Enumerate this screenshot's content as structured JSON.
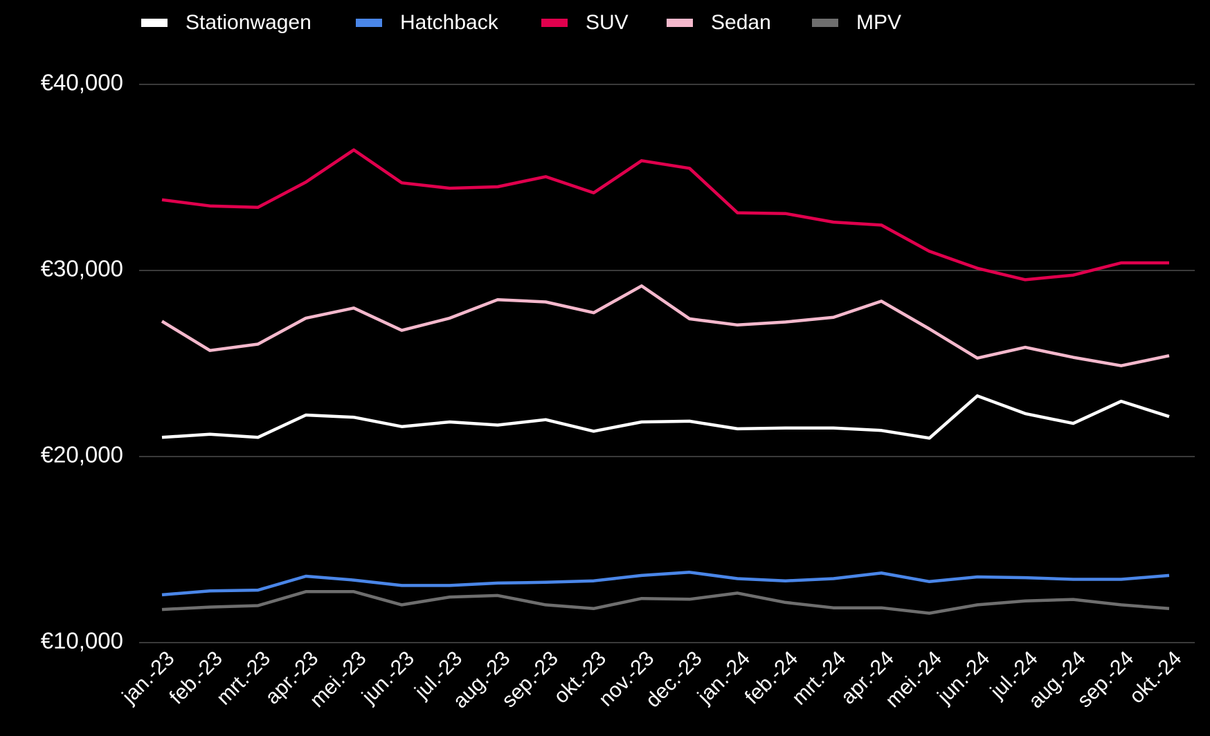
{
  "chart_data": {
    "type": "line",
    "categories": [
      "jan.-23",
      "feb.-23",
      "mrt.-23",
      "apr.-23",
      "mei.-23",
      "jun.-23",
      "jul.-23",
      "aug.-23",
      "sep.-23",
      "okt.-23",
      "nov.-23",
      "dec.-23",
      "jan.-24",
      "feb.-24",
      "mrt.-24",
      "apr.-24",
      "mei.-24",
      "jun.-24",
      "jul.-24",
      "aug.-24",
      "sep.-24",
      "okt.-24"
    ],
    "series": [
      {
        "name": "Stationwagen",
        "color": "#ffffff",
        "values": [
          21030,
          21200,
          21030,
          22230,
          22110,
          21610,
          21860,
          21690,
          21980,
          21360,
          21860,
          21900,
          21490,
          21530,
          21530,
          21400,
          20990,
          23260,
          22310,
          21780,
          22970,
          22150
        ]
      },
      {
        "name": "Hatchback",
        "color": "#4a86e8",
        "values": [
          12570,
          12780,
          12820,
          13570,
          13360,
          13070,
          13070,
          13200,
          13240,
          13320,
          13610,
          13780,
          13440,
          13320,
          13440,
          13740,
          13280,
          13530,
          13490,
          13400,
          13400,
          13610
        ]
      },
      {
        "name": "SUV",
        "color": "#e0004d",
        "values": [
          33800,
          33470,
          33390,
          34750,
          36480,
          34710,
          34420,
          34500,
          35040,
          34170,
          35900,
          35490,
          33100,
          33060,
          32600,
          32440,
          31030,
          30120,
          29500,
          29750,
          30410,
          30410
        ]
      },
      {
        "name": "Sedan",
        "color": "#f4b8cc",
        "values": [
          27270,
          25700,
          26040,
          27440,
          27980,
          26780,
          27440,
          28430,
          28310,
          27730,
          29170,
          27400,
          27070,
          27230,
          27480,
          28350,
          26860,
          25290,
          25870,
          25330,
          24880,
          25420
        ]
      },
      {
        "name": "MPV",
        "color": "#6e6e6e",
        "values": [
          11780,
          11910,
          11990,
          12740,
          12740,
          12030,
          12450,
          12530,
          12030,
          11830,
          12370,
          12330,
          12660,
          12160,
          11870,
          11870,
          11580,
          12030,
          12240,
          12320,
          12030,
          11830
        ]
      }
    ],
    "ylim": [
      10000,
      40000
    ],
    "yticks": [
      {
        "value": 10000,
        "label": "€10,000"
      },
      {
        "value": 20000,
        "label": "€20,000"
      },
      {
        "value": 30000,
        "label": "€30,000"
      },
      {
        "value": 40000,
        "label": "€40,000"
      }
    ],
    "grid": true,
    "legend": "top"
  }
}
